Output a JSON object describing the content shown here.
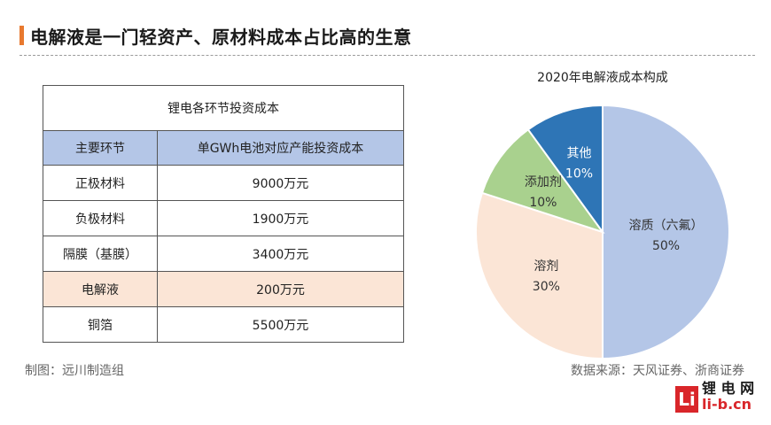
{
  "title": "电解液是一门轻资产、原材料成本占比高的生意",
  "table": {
    "caption": "锂电各环节投资成本",
    "headers": [
      "主要环节",
      "单GWh电池对应产能投资成本"
    ],
    "rows": [
      {
        "stage": "正极材料",
        "cost": "9000万元"
      },
      {
        "stage": "负极材料",
        "cost": "1900万元"
      },
      {
        "stage": "隔膜（基膜）",
        "cost": "3400万元"
      },
      {
        "stage": "电解液",
        "cost": "200万元"
      },
      {
        "stage": "铜箔",
        "cost": "5500万元"
      }
    ]
  },
  "footer": {
    "made_by": "制图：远川制造组",
    "source": "数据来源：天风证券、浙商证券"
  },
  "logo": {
    "mark": "Li",
    "cn": "锂 电 网",
    "domain": "li-b.cn"
  },
  "chart_data": {
    "type": "pie",
    "title": "2020年电解液成本构成",
    "slices": [
      {
        "label": "溶质（六氟）",
        "value": 50,
        "value_label": "50%",
        "color": "#b4c6e7"
      },
      {
        "label": "溶剂",
        "value": 30,
        "value_label": "30%",
        "color": "#fbe5d6"
      },
      {
        "label": "添加剂",
        "value": 10,
        "value_label": "10%",
        "color": "#a9d18e"
      },
      {
        "label": "其他",
        "value": 10,
        "value_label": "10%",
        "color": "#2e75b6"
      }
    ]
  }
}
